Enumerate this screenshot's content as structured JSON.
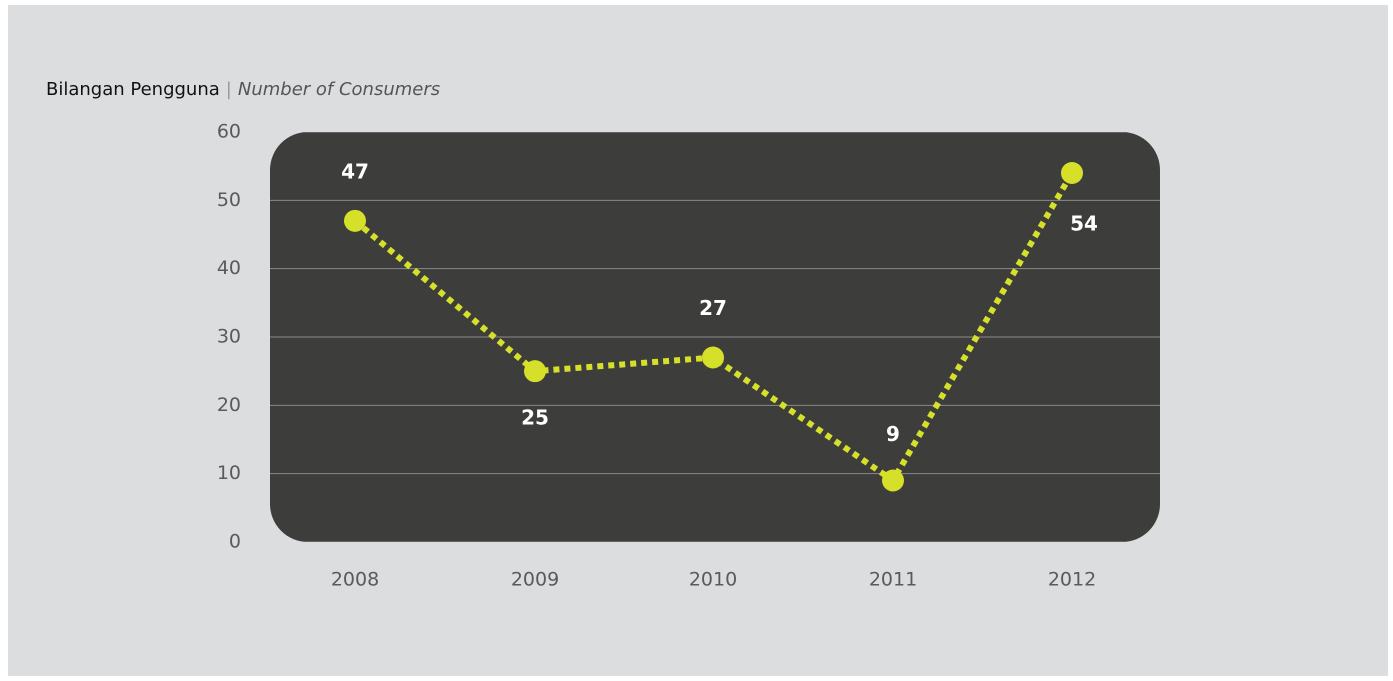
{
  "chart_data": {
    "type": "line",
    "title": "Bilangan Pengguna",
    "title_separator": "|",
    "subtitle": "Number of Consumers",
    "categories": [
      "2008",
      "2009",
      "2010",
      "2011",
      "2012"
    ],
    "series": [
      {
        "name": "Number of Consumers",
        "color": "#d6e02a",
        "values": [
          47,
          25,
          27,
          9,
          54
        ]
      }
    ],
    "ylim": [
      0,
      60
    ],
    "yticks": [
      0,
      10,
      20,
      30,
      40,
      50,
      60
    ],
    "grid": true
  }
}
